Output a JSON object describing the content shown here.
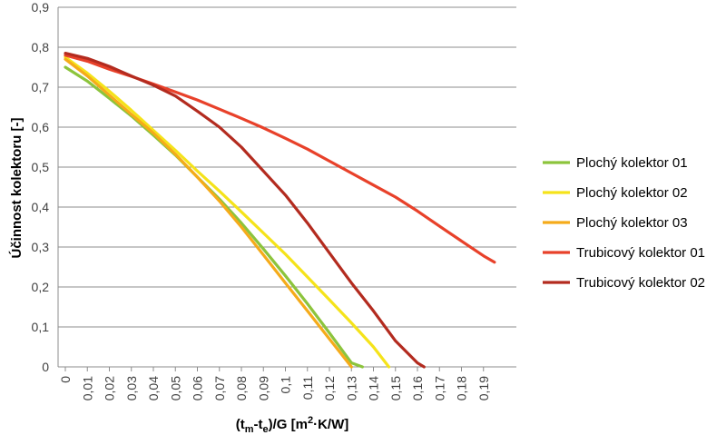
{
  "chart_data": {
    "type": "line",
    "xlabel_parts": [
      "(t",
      "m",
      "-t",
      "e",
      ")/G [m",
      "2",
      "·K/W]"
    ],
    "ylabel": "Účinnost kolektoru [-]",
    "xlim": [
      0,
      0.195
    ],
    "ylim": [
      0,
      0.9
    ],
    "x_ticks": [
      "0",
      "0,01",
      "0,02",
      "0,03",
      "0,04",
      "0,05",
      "0,06",
      "0,07",
      "0,08",
      "0,09",
      "0,1",
      "0,11",
      "0,12",
      "0,13",
      "0,14",
      "0,15",
      "0,16",
      "0,17",
      "0,18",
      "0,19"
    ],
    "y_ticks": [
      "0",
      "0,1",
      "0,2",
      "0,3",
      "0,4",
      "0,5",
      "0,6",
      "0,7",
      "0,8",
      "0,9"
    ],
    "grid": "horizontal",
    "legend_position": "right",
    "series": [
      {
        "name": "Plochý kolektor 01",
        "color": "#8cc43c",
        "x": [
          0,
          0.01,
          0.02,
          0.03,
          0.04,
          0.05,
          0.06,
          0.07,
          0.08,
          0.09,
          0.1,
          0.11,
          0.12,
          0.13,
          0.135
        ],
        "y": [
          0.75,
          0.715,
          0.672,
          0.628,
          0.58,
          0.53,
          0.475,
          0.42,
          0.36,
          0.295,
          0.228,
          0.158,
          0.085,
          0.01,
          0
        ]
      },
      {
        "name": "Plochý kolektor 02",
        "color": "#f5e31a",
        "x": [
          0,
          0.01,
          0.02,
          0.03,
          0.04,
          0.05,
          0.06,
          0.07,
          0.08,
          0.09,
          0.1,
          0.11,
          0.12,
          0.13,
          0.14,
          0.147
        ],
        "y": [
          0.775,
          0.735,
          0.69,
          0.642,
          0.592,
          0.542,
          0.49,
          0.44,
          0.388,
          0.335,
          0.282,
          0.225,
          0.168,
          0.11,
          0.05,
          0
        ]
      },
      {
        "name": "Plochý kolektor 03",
        "color": "#f5ab1a",
        "x": [
          0,
          0.01,
          0.02,
          0.03,
          0.04,
          0.05,
          0.06,
          0.07,
          0.08,
          0.09,
          0.1,
          0.11,
          0.12,
          0.13
        ],
        "y": [
          0.77,
          0.728,
          0.68,
          0.632,
          0.585,
          0.532,
          0.475,
          0.415,
          0.35,
          0.28,
          0.21,
          0.14,
          0.07,
          0
        ]
      },
      {
        "name": "Trubicový kolektor 01",
        "color": "#e8412a",
        "x": [
          0,
          0.01,
          0.02,
          0.03,
          0.04,
          0.05,
          0.06,
          0.07,
          0.08,
          0.09,
          0.1,
          0.11,
          0.12,
          0.13,
          0.14,
          0.15,
          0.16,
          0.17,
          0.18,
          0.19,
          0.195
        ],
        "y": [
          0.78,
          0.765,
          0.745,
          0.727,
          0.708,
          0.688,
          0.668,
          0.645,
          0.622,
          0.598,
          0.572,
          0.545,
          0.515,
          0.485,
          0.455,
          0.425,
          0.39,
          0.352,
          0.315,
          0.278,
          0.262
        ]
      },
      {
        "name": "Trubicový kolektor 02",
        "color": "#b32b1f",
        "x": [
          0,
          0.01,
          0.02,
          0.03,
          0.04,
          0.05,
          0.06,
          0.07,
          0.08,
          0.09,
          0.1,
          0.11,
          0.12,
          0.13,
          0.14,
          0.15,
          0.16,
          0.163
        ],
        "y": [
          0.785,
          0.772,
          0.752,
          0.728,
          0.705,
          0.678,
          0.64,
          0.6,
          0.55,
          0.49,
          0.43,
          0.36,
          0.285,
          0.21,
          0.14,
          0.065,
          0.01,
          0
        ]
      }
    ]
  }
}
